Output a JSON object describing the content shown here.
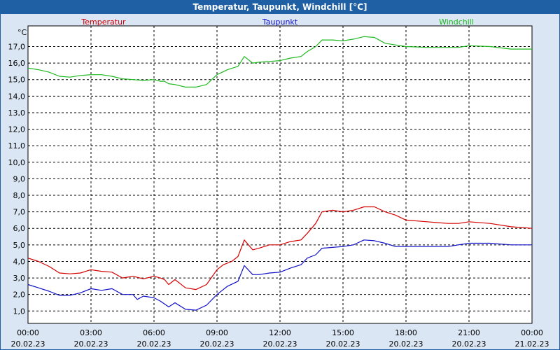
{
  "window": {
    "title": "Temperatur, Taupunkt, Windchill [°C]"
  },
  "chart_data": {
    "type": "line",
    "title": "Temperatur, Taupunkt, Windchill [°C]",
    "ylabel": "°C",
    "ylim": [
      0.25,
      18.25
    ],
    "yticks": [
      1,
      2,
      3,
      4,
      5,
      6,
      7,
      8,
      9,
      10,
      11,
      12,
      13,
      14,
      15,
      16,
      17
    ],
    "ytick_labels": [
      "1,0",
      "2,0",
      "3,0",
      "4,0",
      "5,0",
      "6,0",
      "7,0",
      "8,0",
      "9,0",
      "10,0",
      "11,0",
      "12,0",
      "13,0",
      "14,0",
      "15,0",
      "16,0",
      "17,0"
    ],
    "xlim": [
      0,
      24
    ],
    "xticks": [
      0,
      3,
      6,
      9,
      12,
      15,
      18,
      21,
      24
    ],
    "xtick_labels": [
      [
        "00:00",
        "20.02.23"
      ],
      [
        "03:00",
        "20.02.23"
      ],
      [
        "06:00",
        "20.02.23"
      ],
      [
        "09:00",
        "20.02.23"
      ],
      [
        "12:00",
        "20.02.23"
      ],
      [
        "15:00",
        "20.02.23"
      ],
      [
        "18:00",
        "20.02.23"
      ],
      [
        "21:00",
        "20.02.23"
      ],
      [
        "00:00",
        "21.02.23"
      ]
    ],
    "grid": true,
    "legend_position": "top",
    "x_unit": "hours since 20.02.23 00:00",
    "series": [
      {
        "name": "Temperatur",
        "color": "#d40000",
        "points": [
          [
            0,
            4.2
          ],
          [
            0.5,
            4.0
          ],
          [
            1,
            3.7
          ],
          [
            1.5,
            3.3
          ],
          [
            2,
            3.25
          ],
          [
            2.5,
            3.3
          ],
          [
            3,
            3.5
          ],
          [
            3.5,
            3.4
          ],
          [
            4,
            3.35
          ],
          [
            4.5,
            3.0
          ],
          [
            5,
            3.1
          ],
          [
            5.5,
            2.95
          ],
          [
            6,
            3.1
          ],
          [
            6.3,
            3.0
          ],
          [
            6.5,
            2.9
          ],
          [
            6.7,
            2.6
          ],
          [
            7,
            2.9
          ],
          [
            7.5,
            2.4
          ],
          [
            8,
            2.3
          ],
          [
            8.5,
            2.6
          ],
          [
            9,
            3.5
          ],
          [
            9.3,
            3.8
          ],
          [
            9.7,
            4.0
          ],
          [
            10,
            4.3
          ],
          [
            10.3,
            5.3
          ],
          [
            10.7,
            4.7
          ],
          [
            11,
            4.8
          ],
          [
            11.5,
            5.0
          ],
          [
            12,
            5.0
          ],
          [
            12.5,
            5.2
          ],
          [
            13,
            5.3
          ],
          [
            13.3,
            5.7
          ],
          [
            13.7,
            6.3
          ],
          [
            14,
            7.0
          ],
          [
            14.5,
            7.1
          ],
          [
            15,
            7.0
          ],
          [
            15.5,
            7.1
          ],
          [
            16,
            7.3
          ],
          [
            16.5,
            7.3
          ],
          [
            17,
            7.0
          ],
          [
            17.5,
            6.8
          ],
          [
            18,
            6.5
          ],
          [
            19,
            6.4
          ],
          [
            20,
            6.3
          ],
          [
            20.5,
            6.3
          ],
          [
            21,
            6.4
          ],
          [
            22,
            6.3
          ],
          [
            23,
            6.1
          ],
          [
            24,
            6.0
          ]
        ]
      },
      {
        "name": "Taupunkt",
        "color": "#1010c8",
        "points": [
          [
            0,
            2.6
          ],
          [
            0.5,
            2.4
          ],
          [
            1,
            2.2
          ],
          [
            1.5,
            1.95
          ],
          [
            2,
            1.95
          ],
          [
            2.5,
            2.1
          ],
          [
            3,
            2.35
          ],
          [
            3.5,
            2.25
          ],
          [
            4,
            2.35
          ],
          [
            4.5,
            2.0
          ],
          [
            5,
            2.0
          ],
          [
            5.2,
            1.7
          ],
          [
            5.5,
            1.9
          ],
          [
            6,
            1.8
          ],
          [
            6.3,
            1.6
          ],
          [
            6.7,
            1.25
          ],
          [
            7,
            1.5
          ],
          [
            7.5,
            1.1
          ],
          [
            8,
            1.05
          ],
          [
            8.5,
            1.35
          ],
          [
            9,
            2.0
          ],
          [
            9.5,
            2.5
          ],
          [
            10,
            2.8
          ],
          [
            10.3,
            3.75
          ],
          [
            10.7,
            3.2
          ],
          [
            11,
            3.2
          ],
          [
            11.5,
            3.3
          ],
          [
            12,
            3.35
          ],
          [
            12.5,
            3.6
          ],
          [
            13,
            3.8
          ],
          [
            13.3,
            4.2
          ],
          [
            13.7,
            4.4
          ],
          [
            14,
            4.8
          ],
          [
            14.5,
            4.85
          ],
          [
            15,
            4.9
          ],
          [
            15.5,
            5.0
          ],
          [
            16,
            5.3
          ],
          [
            16.5,
            5.25
          ],
          [
            17,
            5.1
          ],
          [
            17.5,
            4.9
          ],
          [
            18,
            4.9
          ],
          [
            19,
            4.9
          ],
          [
            20,
            4.9
          ],
          [
            20.5,
            5.0
          ],
          [
            21,
            5.1
          ],
          [
            22,
            5.1
          ],
          [
            23,
            5.0
          ],
          [
            24,
            5.0
          ]
        ]
      },
      {
        "name": "Windchill",
        "color": "#1db81d",
        "points": [
          [
            0,
            15.7
          ],
          [
            0.5,
            15.6
          ],
          [
            1,
            15.45
          ],
          [
            1.5,
            15.2
          ],
          [
            2,
            15.15
          ],
          [
            2.5,
            15.25
          ],
          [
            3,
            15.3
          ],
          [
            3.5,
            15.3
          ],
          [
            4,
            15.2
          ],
          [
            4.5,
            15.05
          ],
          [
            5,
            15.0
          ],
          [
            5.5,
            14.95
          ],
          [
            6,
            15.0
          ],
          [
            6.3,
            14.9
          ],
          [
            6.5,
            14.9
          ],
          [
            6.7,
            14.75
          ],
          [
            7,
            14.7
          ],
          [
            7.5,
            14.55
          ],
          [
            8,
            14.55
          ],
          [
            8.5,
            14.7
          ],
          [
            9,
            15.3
          ],
          [
            9.5,
            15.6
          ],
          [
            10,
            15.8
          ],
          [
            10.3,
            16.4
          ],
          [
            10.7,
            16.0
          ],
          [
            11,
            16.05
          ],
          [
            11.5,
            16.1
          ],
          [
            12,
            16.15
          ],
          [
            12.5,
            16.3
          ],
          [
            13,
            16.4
          ],
          [
            13.3,
            16.7
          ],
          [
            13.7,
            17.0
          ],
          [
            14,
            17.4
          ],
          [
            14.5,
            17.4
          ],
          [
            15,
            17.35
          ],
          [
            15.5,
            17.45
          ],
          [
            16,
            17.6
          ],
          [
            16.5,
            17.55
          ],
          [
            17,
            17.2
          ],
          [
            17.5,
            17.1
          ],
          [
            18,
            17.0
          ],
          [
            19,
            16.95
          ],
          [
            20,
            16.95
          ],
          [
            20.5,
            16.95
          ],
          [
            21,
            17.05
          ],
          [
            22,
            17.0
          ],
          [
            23,
            16.85
          ],
          [
            24,
            16.85
          ]
        ]
      }
    ]
  }
}
